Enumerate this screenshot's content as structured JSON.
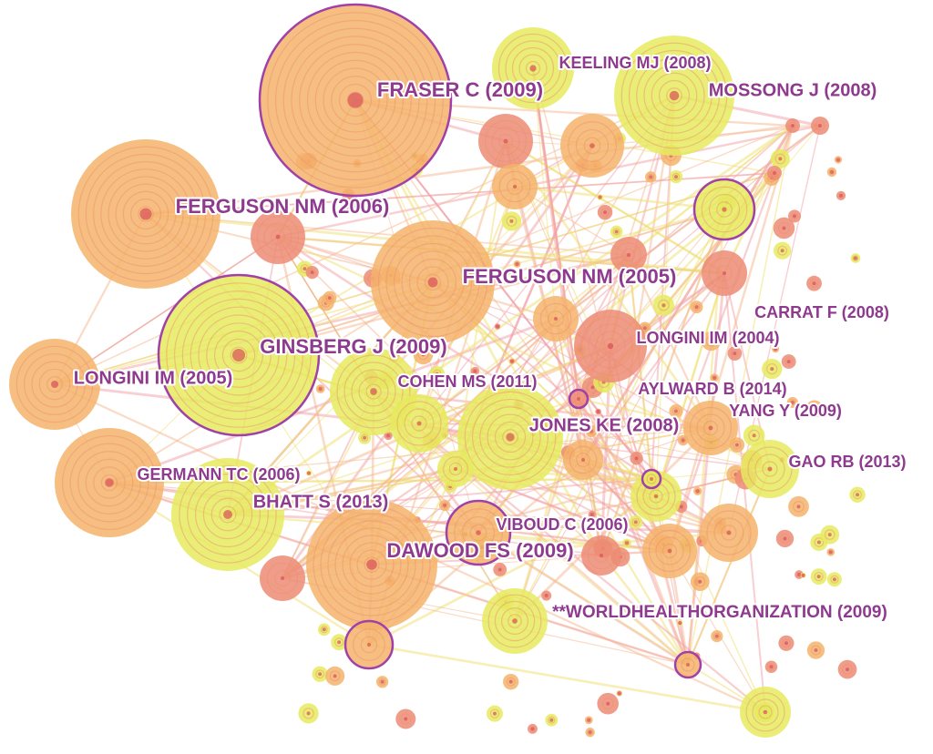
{
  "nodes": [
    {
      "label": "FRASER C (2009)"
    },
    {
      "label": "KEELING MJ (2008)"
    },
    {
      "label": "MOSSONG J (2008)"
    },
    {
      "label": "FERGUSON NM (2006)"
    },
    {
      "label": "FERGUSON NM (2005)"
    },
    {
      "label": "CARRAT F (2008)"
    },
    {
      "label": "GINSBERG J (2009)"
    },
    {
      "label": "LONGINI IM (2004)"
    },
    {
      "label": "LONGINI IM (2005)"
    },
    {
      "label": "COHEN MS (2011)"
    },
    {
      "label": "AYLWARD B (2014)"
    },
    {
      "label": "YANG Y (2009)"
    },
    {
      "label": "JONES KE (2008)"
    },
    {
      "label": "GAO RB (2013)"
    },
    {
      "label": "GERMANN TC (2006)"
    },
    {
      "label": "BHATT S (2013)"
    },
    {
      "label": "VIBOUD C (2006)"
    },
    {
      "label": "DAWOOD FS (2009)"
    },
    {
      "label": "**WORLDHEALTHORGANIZATION (2009)"
    }
  ]
}
